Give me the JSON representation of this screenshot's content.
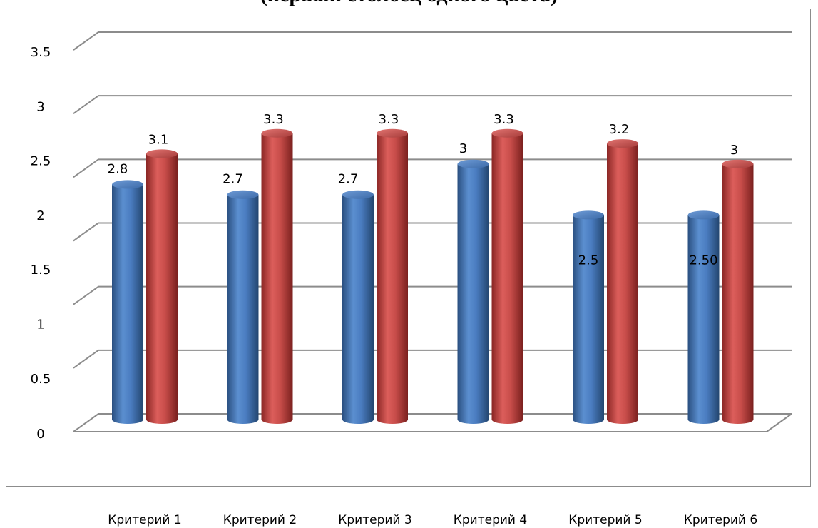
{
  "chart_data": {
    "type": "bar",
    "title": "(первый столбец одного цвета)",
    "xlabel": "",
    "ylabel": "",
    "categories": [
      "Критерий 1",
      "Критерий 2",
      "Критерий 3",
      "Критерий 4",
      "Критерий 5",
      "Критерий 6"
    ],
    "series": [
      {
        "values": [
          2.8,
          2.7,
          2.7,
          3,
          2.5,
          2.5
        ],
        "labels": [
          "2.8",
          "2.7",
          "2.7",
          "3",
          "2.5",
          "2.50"
        ]
      },
      {
        "values": [
          3.1,
          3.3,
          3.3,
          3.3,
          3.2,
          3
        ],
        "labels": [
          "3.1",
          "3.3",
          "3.3",
          "3.3",
          "3.2",
          "3"
        ]
      }
    ],
    "y_tick_labels": [
      "3.5",
      "3",
      "2.5",
      "2",
      "1.5",
      "1",
      "0.5",
      "0"
    ],
    "ylim": [
      0,
      3.5
    ],
    "grid": true,
    "legend": "none",
    "colors": [
      "#4f81bd",
      "#c0504d"
    ],
    "style": "3d-cylinder"
  }
}
